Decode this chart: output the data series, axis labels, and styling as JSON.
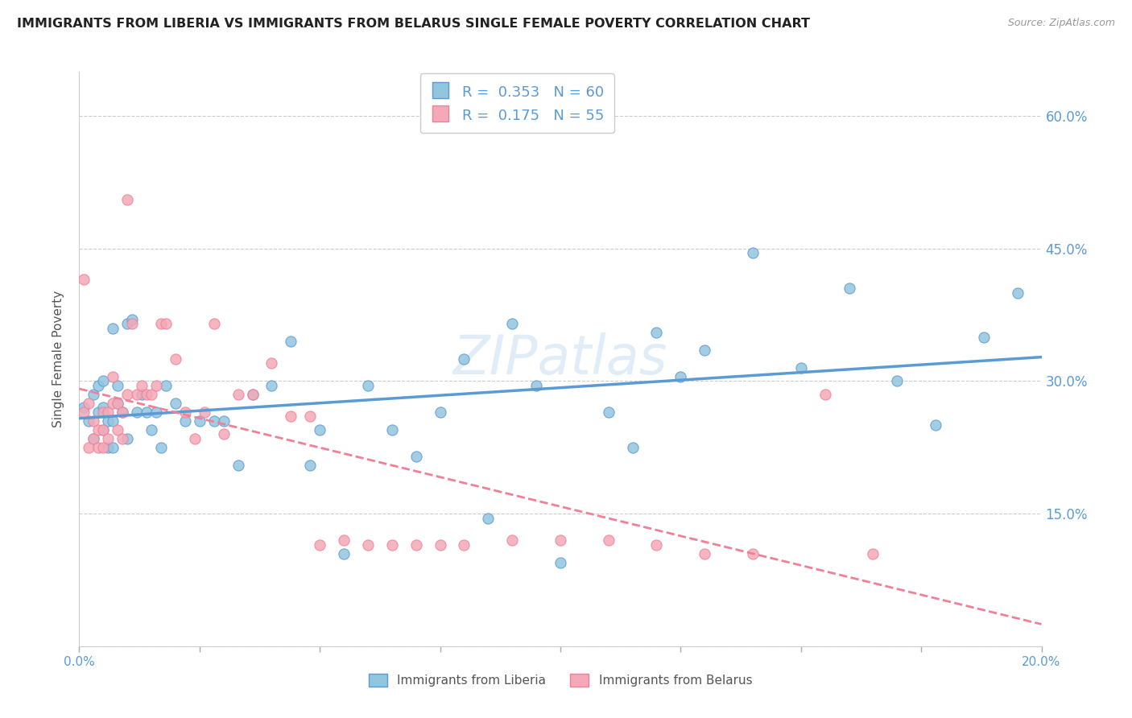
{
  "title": "IMMIGRANTS FROM LIBERIA VS IMMIGRANTS FROM BELARUS SINGLE FEMALE POVERTY CORRELATION CHART",
  "source": "Source: ZipAtlas.com",
  "ylabel": "Single Female Poverty",
  "color_liberia": "#92C5DE",
  "color_belarus": "#F4A9B8",
  "line_liberia": "#5B9BD5",
  "line_belarus": "#F08098",
  "watermark": "ZIPatlas",
  "liberia_x": [
    0.001,
    0.002,
    0.003,
    0.003,
    0.004,
    0.004,
    0.005,
    0.005,
    0.005,
    0.006,
    0.006,
    0.007,
    0.007,
    0.007,
    0.008,
    0.008,
    0.009,
    0.01,
    0.01,
    0.011,
    0.012,
    0.013,
    0.014,
    0.015,
    0.016,
    0.017,
    0.018,
    0.02,
    0.022,
    0.025,
    0.028,
    0.03,
    0.033,
    0.036,
    0.04,
    0.044,
    0.048,
    0.05,
    0.055,
    0.06,
    0.065,
    0.07,
    0.075,
    0.08,
    0.085,
    0.09,
    0.095,
    0.1,
    0.11,
    0.115,
    0.12,
    0.125,
    0.13,
    0.14,
    0.15,
    0.16,
    0.17,
    0.178,
    0.188,
    0.195
  ],
  "liberia_y": [
    0.27,
    0.255,
    0.285,
    0.235,
    0.265,
    0.295,
    0.27,
    0.245,
    0.3,
    0.225,
    0.255,
    0.36,
    0.255,
    0.225,
    0.275,
    0.295,
    0.265,
    0.365,
    0.235,
    0.37,
    0.265,
    0.285,
    0.265,
    0.245,
    0.265,
    0.225,
    0.295,
    0.275,
    0.255,
    0.255,
    0.255,
    0.255,
    0.205,
    0.285,
    0.295,
    0.345,
    0.205,
    0.245,
    0.105,
    0.295,
    0.245,
    0.215,
    0.265,
    0.325,
    0.145,
    0.365,
    0.295,
    0.095,
    0.265,
    0.225,
    0.355,
    0.305,
    0.335,
    0.445,
    0.315,
    0.405,
    0.3,
    0.25,
    0.35,
    0.4
  ],
  "belarus_x": [
    0.001,
    0.001,
    0.002,
    0.002,
    0.003,
    0.003,
    0.004,
    0.004,
    0.005,
    0.005,
    0.005,
    0.006,
    0.006,
    0.007,
    0.007,
    0.008,
    0.008,
    0.009,
    0.009,
    0.01,
    0.01,
    0.011,
    0.012,
    0.013,
    0.014,
    0.015,
    0.016,
    0.017,
    0.018,
    0.02,
    0.022,
    0.024,
    0.026,
    0.028,
    0.03,
    0.033,
    0.036,
    0.04,
    0.044,
    0.048,
    0.05,
    0.055,
    0.06,
    0.065,
    0.07,
    0.075,
    0.08,
    0.09,
    0.1,
    0.11,
    0.12,
    0.13,
    0.14,
    0.155,
    0.165
  ],
  "belarus_y": [
    0.415,
    0.265,
    0.275,
    0.225,
    0.255,
    0.235,
    0.225,
    0.245,
    0.245,
    0.225,
    0.265,
    0.235,
    0.265,
    0.305,
    0.275,
    0.245,
    0.275,
    0.265,
    0.235,
    0.505,
    0.285,
    0.365,
    0.285,
    0.295,
    0.285,
    0.285,
    0.295,
    0.365,
    0.365,
    0.325,
    0.265,
    0.235,
    0.265,
    0.365,
    0.24,
    0.285,
    0.285,
    0.32,
    0.26,
    0.26,
    0.115,
    0.12,
    0.115,
    0.115,
    0.115,
    0.115,
    0.115,
    0.12,
    0.12,
    0.12,
    0.115,
    0.105,
    0.105,
    0.285,
    0.105
  ],
  "xlim": [
    0.0,
    0.2
  ],
  "ylim": [
    0.0,
    0.65
  ],
  "x_ticks": [
    0.0,
    0.025,
    0.05,
    0.075,
    0.1,
    0.125,
    0.15,
    0.175,
    0.2
  ],
  "y_ticks_right": [
    0.15,
    0.3,
    0.45,
    0.6
  ],
  "y_tick_labels_right": [
    "15.0%",
    "30.0%",
    "45.0%",
    "60.0%"
  ],
  "background_color": "#ffffff",
  "grid_color": "#cccccc"
}
